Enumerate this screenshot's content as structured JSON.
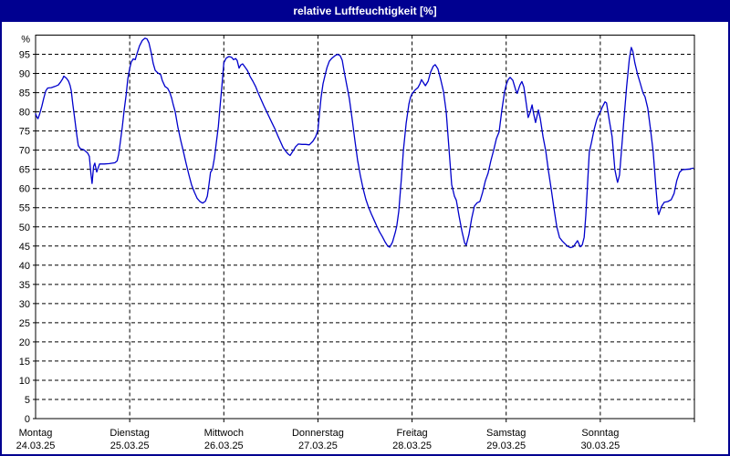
{
  "window": {
    "title": "relative Luftfeuchtigkeit [%]"
  },
  "colors": {
    "titlebar_bg": "#000090",
    "titlebar_text": "#ffffff",
    "window_border": "#000090",
    "plot_bg": "#ffffff",
    "line": "#0000cc",
    "grid": "#000000",
    "axis": "#000000",
    "label": "#000000"
  },
  "chart_data": {
    "type": "line",
    "title": "relative Luftfeuchtigkeit [%]",
    "unit_label": "%",
    "ylabel": "relative Luftfeuchtigkeit",
    "ylim": [
      0,
      100
    ],
    "yticks": [
      0,
      5,
      10,
      15,
      20,
      25,
      30,
      35,
      40,
      45,
      50,
      55,
      60,
      65,
      70,
      75,
      80,
      85,
      90,
      95
    ],
    "grid": "dashed",
    "legend": "none",
    "x_hours_span": 168,
    "x_days": [
      {
        "name": "Montag",
        "date": "24.03.25"
      },
      {
        "name": "Dienstag",
        "date": "25.03.25"
      },
      {
        "name": "Mittwoch",
        "date": "26.03.25"
      },
      {
        "name": "Donnerstag",
        "date": "27.03.25"
      },
      {
        "name": "Freitag",
        "date": "28.03.25"
      },
      {
        "name": "Samstag",
        "date": "29.03.25"
      },
      {
        "name": "Sonntag",
        "date": "30.03.25"
      }
    ],
    "series": [
      {
        "name": "relative Luftfeuchtigkeit [%]",
        "points": [
          [
            0,
            79.5
          ],
          [
            0.3,
            78.7
          ],
          [
            0.6,
            78.2
          ],
          [
            1,
            79.3
          ],
          [
            1.6,
            81.5
          ],
          [
            2.1,
            83.6
          ],
          [
            2.6,
            85.5
          ],
          [
            3.1,
            86.2
          ],
          [
            4,
            86.3
          ],
          [
            4.9,
            86.6
          ],
          [
            5.8,
            87
          ],
          [
            6.4,
            87.8
          ],
          [
            6.9,
            88.6
          ],
          [
            7.2,
            89.3
          ],
          [
            7.6,
            89
          ],
          [
            7.9,
            88.7
          ],
          [
            8.4,
            88
          ],
          [
            8.8,
            86.9
          ],
          [
            9.1,
            85.5
          ],
          [
            9.5,
            82
          ],
          [
            10,
            78
          ],
          [
            10.5,
            74
          ],
          [
            10.9,
            71.2
          ],
          [
            11.4,
            70.4
          ],
          [
            12.3,
            70.1
          ],
          [
            13.3,
            69.2
          ],
          [
            13.7,
            68.4
          ],
          [
            14.1,
            64
          ],
          [
            14.4,
            61.3
          ],
          [
            14.8,
            65.8
          ],
          [
            15.1,
            66.6
          ],
          [
            15.6,
            64.3
          ],
          [
            16.3,
            66.4
          ],
          [
            17.5,
            66.4
          ],
          [
            18.8,
            66.5
          ],
          [
            20.2,
            66.7
          ],
          [
            20.8,
            67.2
          ],
          [
            21.2,
            69
          ],
          [
            21.6,
            72
          ],
          [
            22.1,
            76
          ],
          [
            22.6,
            80.5
          ],
          [
            23.1,
            84.5
          ],
          [
            23.5,
            88.5
          ],
          [
            24,
            91.3
          ],
          [
            24.4,
            93
          ],
          [
            24.9,
            93.8
          ],
          [
            25.4,
            93.6
          ],
          [
            25.9,
            95.3
          ],
          [
            26.5,
            97.2
          ],
          [
            27.2,
            98.6
          ],
          [
            27.9,
            99.2
          ],
          [
            28.4,
            99
          ],
          [
            28.9,
            98
          ],
          [
            29.5,
            95.3
          ],
          [
            30,
            92.6
          ],
          [
            30.5,
            90.8
          ],
          [
            31.2,
            90.1
          ],
          [
            31.9,
            89.7
          ],
          [
            32.3,
            88.2
          ],
          [
            33,
            86.6
          ],
          [
            33.7,
            86.1
          ],
          [
            34.2,
            85.1
          ],
          [
            34.7,
            83.6
          ],
          [
            35.1,
            81.9
          ],
          [
            35.6,
            80
          ],
          [
            36.3,
            75.9
          ],
          [
            37,
            72.6
          ],
          [
            37.7,
            69.6
          ],
          [
            38.4,
            66.5
          ],
          [
            39.1,
            63.6
          ],
          [
            39.8,
            60.9
          ],
          [
            40.5,
            59
          ],
          [
            41.2,
            57.4
          ],
          [
            41.9,
            56.6
          ],
          [
            42.6,
            56.2
          ],
          [
            43.3,
            56.7
          ],
          [
            43.8,
            58
          ],
          [
            44.2,
            61
          ],
          [
            44.6,
            64.2
          ],
          [
            45.1,
            65
          ],
          [
            45.6,
            68
          ],
          [
            46.1,
            72
          ],
          [
            46.6,
            76.2
          ],
          [
            47,
            81
          ],
          [
            47.5,
            86.5
          ],
          [
            48,
            92.8
          ],
          [
            48.6,
            94
          ],
          [
            49.3,
            94.4
          ],
          [
            50,
            94.2
          ],
          [
            50.5,
            93.6
          ],
          [
            51,
            93.9
          ],
          [
            51.4,
            93.4
          ],
          [
            51.9,
            91.4
          ],
          [
            52.3,
            92.2
          ],
          [
            52.8,
            92.5
          ],
          [
            53.3,
            91.8
          ],
          [
            54,
            90.8
          ],
          [
            54.7,
            89.2
          ],
          [
            55.4,
            88
          ],
          [
            56.1,
            86.6
          ],
          [
            56.8,
            84.8
          ],
          [
            57.5,
            83.2
          ],
          [
            58.2,
            81.6
          ],
          [
            58.9,
            80.1
          ],
          [
            59.6,
            78.6
          ],
          [
            60.3,
            77.1
          ],
          [
            61,
            75.6
          ],
          [
            61.7,
            73.9
          ],
          [
            62.4,
            72.3
          ],
          [
            63.1,
            70.7
          ],
          [
            63.8,
            69.7
          ],
          [
            64.4,
            69
          ],
          [
            64.9,
            68.6
          ],
          [
            65.6,
            69.7
          ],
          [
            66.3,
            70.9
          ],
          [
            67,
            71.6
          ],
          [
            67.9,
            71.5
          ],
          [
            68.9,
            71.5
          ],
          [
            69.8,
            71.4
          ],
          [
            70.7,
            72.3
          ],
          [
            71.4,
            73.5
          ],
          [
            72,
            75.2
          ],
          [
            72.4,
            79.5
          ],
          [
            72.8,
            83.8
          ],
          [
            73.3,
            87.3
          ],
          [
            73.8,
            89.5
          ],
          [
            74.3,
            91.5
          ],
          [
            74.9,
            93.2
          ],
          [
            75.6,
            94
          ],
          [
            76.3,
            94.6
          ],
          [
            77,
            95
          ],
          [
            77.7,
            94.6
          ],
          [
            78.2,
            93.4
          ],
          [
            78.6,
            91
          ],
          [
            79.3,
            87.2
          ],
          [
            80,
            83.5
          ],
          [
            80.7,
            78.3
          ],
          [
            81.4,
            72.8
          ],
          [
            82.1,
            67.5
          ],
          [
            82.8,
            63.5
          ],
          [
            83.5,
            60
          ],
          [
            84.2,
            57.2
          ],
          [
            84.9,
            55.1
          ],
          [
            85.6,
            53.4
          ],
          [
            86.3,
            51.8
          ],
          [
            87,
            50.2
          ],
          [
            87.7,
            48.7
          ],
          [
            88.4,
            47.5
          ],
          [
            89.1,
            46.1
          ],
          [
            89.8,
            45
          ],
          [
            90.3,
            44.7
          ],
          [
            91,
            46
          ],
          [
            91.7,
            48.5
          ],
          [
            92.1,
            50.2
          ],
          [
            92.6,
            54
          ],
          [
            93.3,
            63
          ],
          [
            93.8,
            70
          ],
          [
            94.5,
            77
          ],
          [
            95.2,
            82
          ],
          [
            95.6,
            83.8
          ],
          [
            96,
            84.7
          ],
          [
            96.8,
            85.7
          ],
          [
            97.5,
            86.3
          ],
          [
            98,
            87.3
          ],
          [
            98.4,
            88.4
          ],
          [
            98.9,
            87.6
          ],
          [
            99.4,
            86.8
          ],
          [
            100.1,
            88
          ],
          [
            100.7,
            90.3
          ],
          [
            101.4,
            91.9
          ],
          [
            101.9,
            92.3
          ],
          [
            102.6,
            91.2
          ],
          [
            103.3,
            88.5
          ],
          [
            104,
            85.3
          ],
          [
            104.7,
            80
          ],
          [
            105.4,
            70.5
          ],
          [
            106.1,
            61
          ],
          [
            106.8,
            58
          ],
          [
            107.3,
            56.9
          ],
          [
            108,
            52.8
          ],
          [
            108.7,
            48.9
          ],
          [
            109.4,
            45.8
          ],
          [
            109.8,
            45.2
          ],
          [
            110.5,
            48
          ],
          [
            111.2,
            52.2
          ],
          [
            111.9,
            55.4
          ],
          [
            112.6,
            56.3
          ],
          [
            113.3,
            56.6
          ],
          [
            114,
            59
          ],
          [
            114.7,
            62
          ],
          [
            115.4,
            64
          ],
          [
            116.1,
            67.3
          ],
          [
            116.8,
            70
          ],
          [
            117.5,
            73
          ],
          [
            118.2,
            74.8
          ],
          [
            118.9,
            80.5
          ],
          [
            119.6,
            85.3
          ],
          [
            120,
            87
          ],
          [
            120.5,
            88.4
          ],
          [
            121,
            89
          ],
          [
            121.7,
            88.2
          ],
          [
            122.4,
            85.8
          ],
          [
            122.8,
            84.8
          ],
          [
            123.5,
            87
          ],
          [
            124,
            87.9
          ],
          [
            124.5,
            86.5
          ],
          [
            125.2,
            81.5
          ],
          [
            125.6,
            78.5
          ],
          [
            126.1,
            79.8
          ],
          [
            126.6,
            81.8
          ],
          [
            127,
            79.5
          ],
          [
            127.5,
            77.2
          ],
          [
            128,
            79.5
          ],
          [
            128.2,
            80.5
          ],
          [
            128.7,
            78.2
          ],
          [
            129.4,
            73.5
          ],
          [
            130.1,
            69.8
          ],
          [
            130.8,
            64.5
          ],
          [
            131.5,
            59.8
          ],
          [
            132.2,
            54.8
          ],
          [
            132.9,
            50
          ],
          [
            133.6,
            47.2
          ],
          [
            134.3,
            46.3
          ],
          [
            135,
            45.6
          ],
          [
            135.7,
            44.9
          ],
          [
            136.4,
            44.6
          ],
          [
            137.1,
            44.8
          ],
          [
            137.8,
            45.8
          ],
          [
            138.2,
            46.4
          ],
          [
            138.9,
            44.8
          ],
          [
            139.4,
            45.3
          ],
          [
            139.9,
            47.3
          ],
          [
            140.3,
            53
          ],
          [
            140.8,
            62
          ],
          [
            141.2,
            69.5
          ],
          [
            141.7,
            71.8
          ],
          [
            142.4,
            75.3
          ],
          [
            143.1,
            78
          ],
          [
            143.6,
            79.2
          ],
          [
            144,
            80
          ],
          [
            144.5,
            81.2
          ],
          [
            145.2,
            82.6
          ],
          [
            145.6,
            82.3
          ],
          [
            146.3,
            77.8
          ],
          [
            147,
            73.5
          ],
          [
            147.7,
            65
          ],
          [
            148.2,
            62.5
          ],
          [
            148.4,
            61.6
          ],
          [
            148.9,
            63.5
          ],
          [
            149.3,
            68.5
          ],
          [
            150,
            77.5
          ],
          [
            150.7,
            86.5
          ],
          [
            151.4,
            93.8
          ],
          [
            151.9,
            96.8
          ],
          [
            152.3,
            95.8
          ],
          [
            152.8,
            92.8
          ],
          [
            153.5,
            89.8
          ],
          [
            154.2,
            87.4
          ],
          [
            154.9,
            84.9
          ],
          [
            155.4,
            83.9
          ],
          [
            156.1,
            80.9
          ],
          [
            156.8,
            75.4
          ],
          [
            157.5,
            69.4
          ],
          [
            158.2,
            59.9
          ],
          [
            158.7,
            54
          ],
          [
            158.9,
            53.2
          ],
          [
            159.6,
            55.3
          ],
          [
            160.3,
            56.4
          ],
          [
            161.2,
            56.6
          ],
          [
            162.1,
            57.1
          ],
          [
            162.8,
            58.7
          ],
          [
            163.5,
            62.1
          ],
          [
            164.2,
            64.2
          ],
          [
            164.9,
            64.9
          ],
          [
            165.9,
            65
          ],
          [
            166.8,
            65.1
          ],
          [
            167.7,
            65.3
          ]
        ]
      }
    ]
  }
}
